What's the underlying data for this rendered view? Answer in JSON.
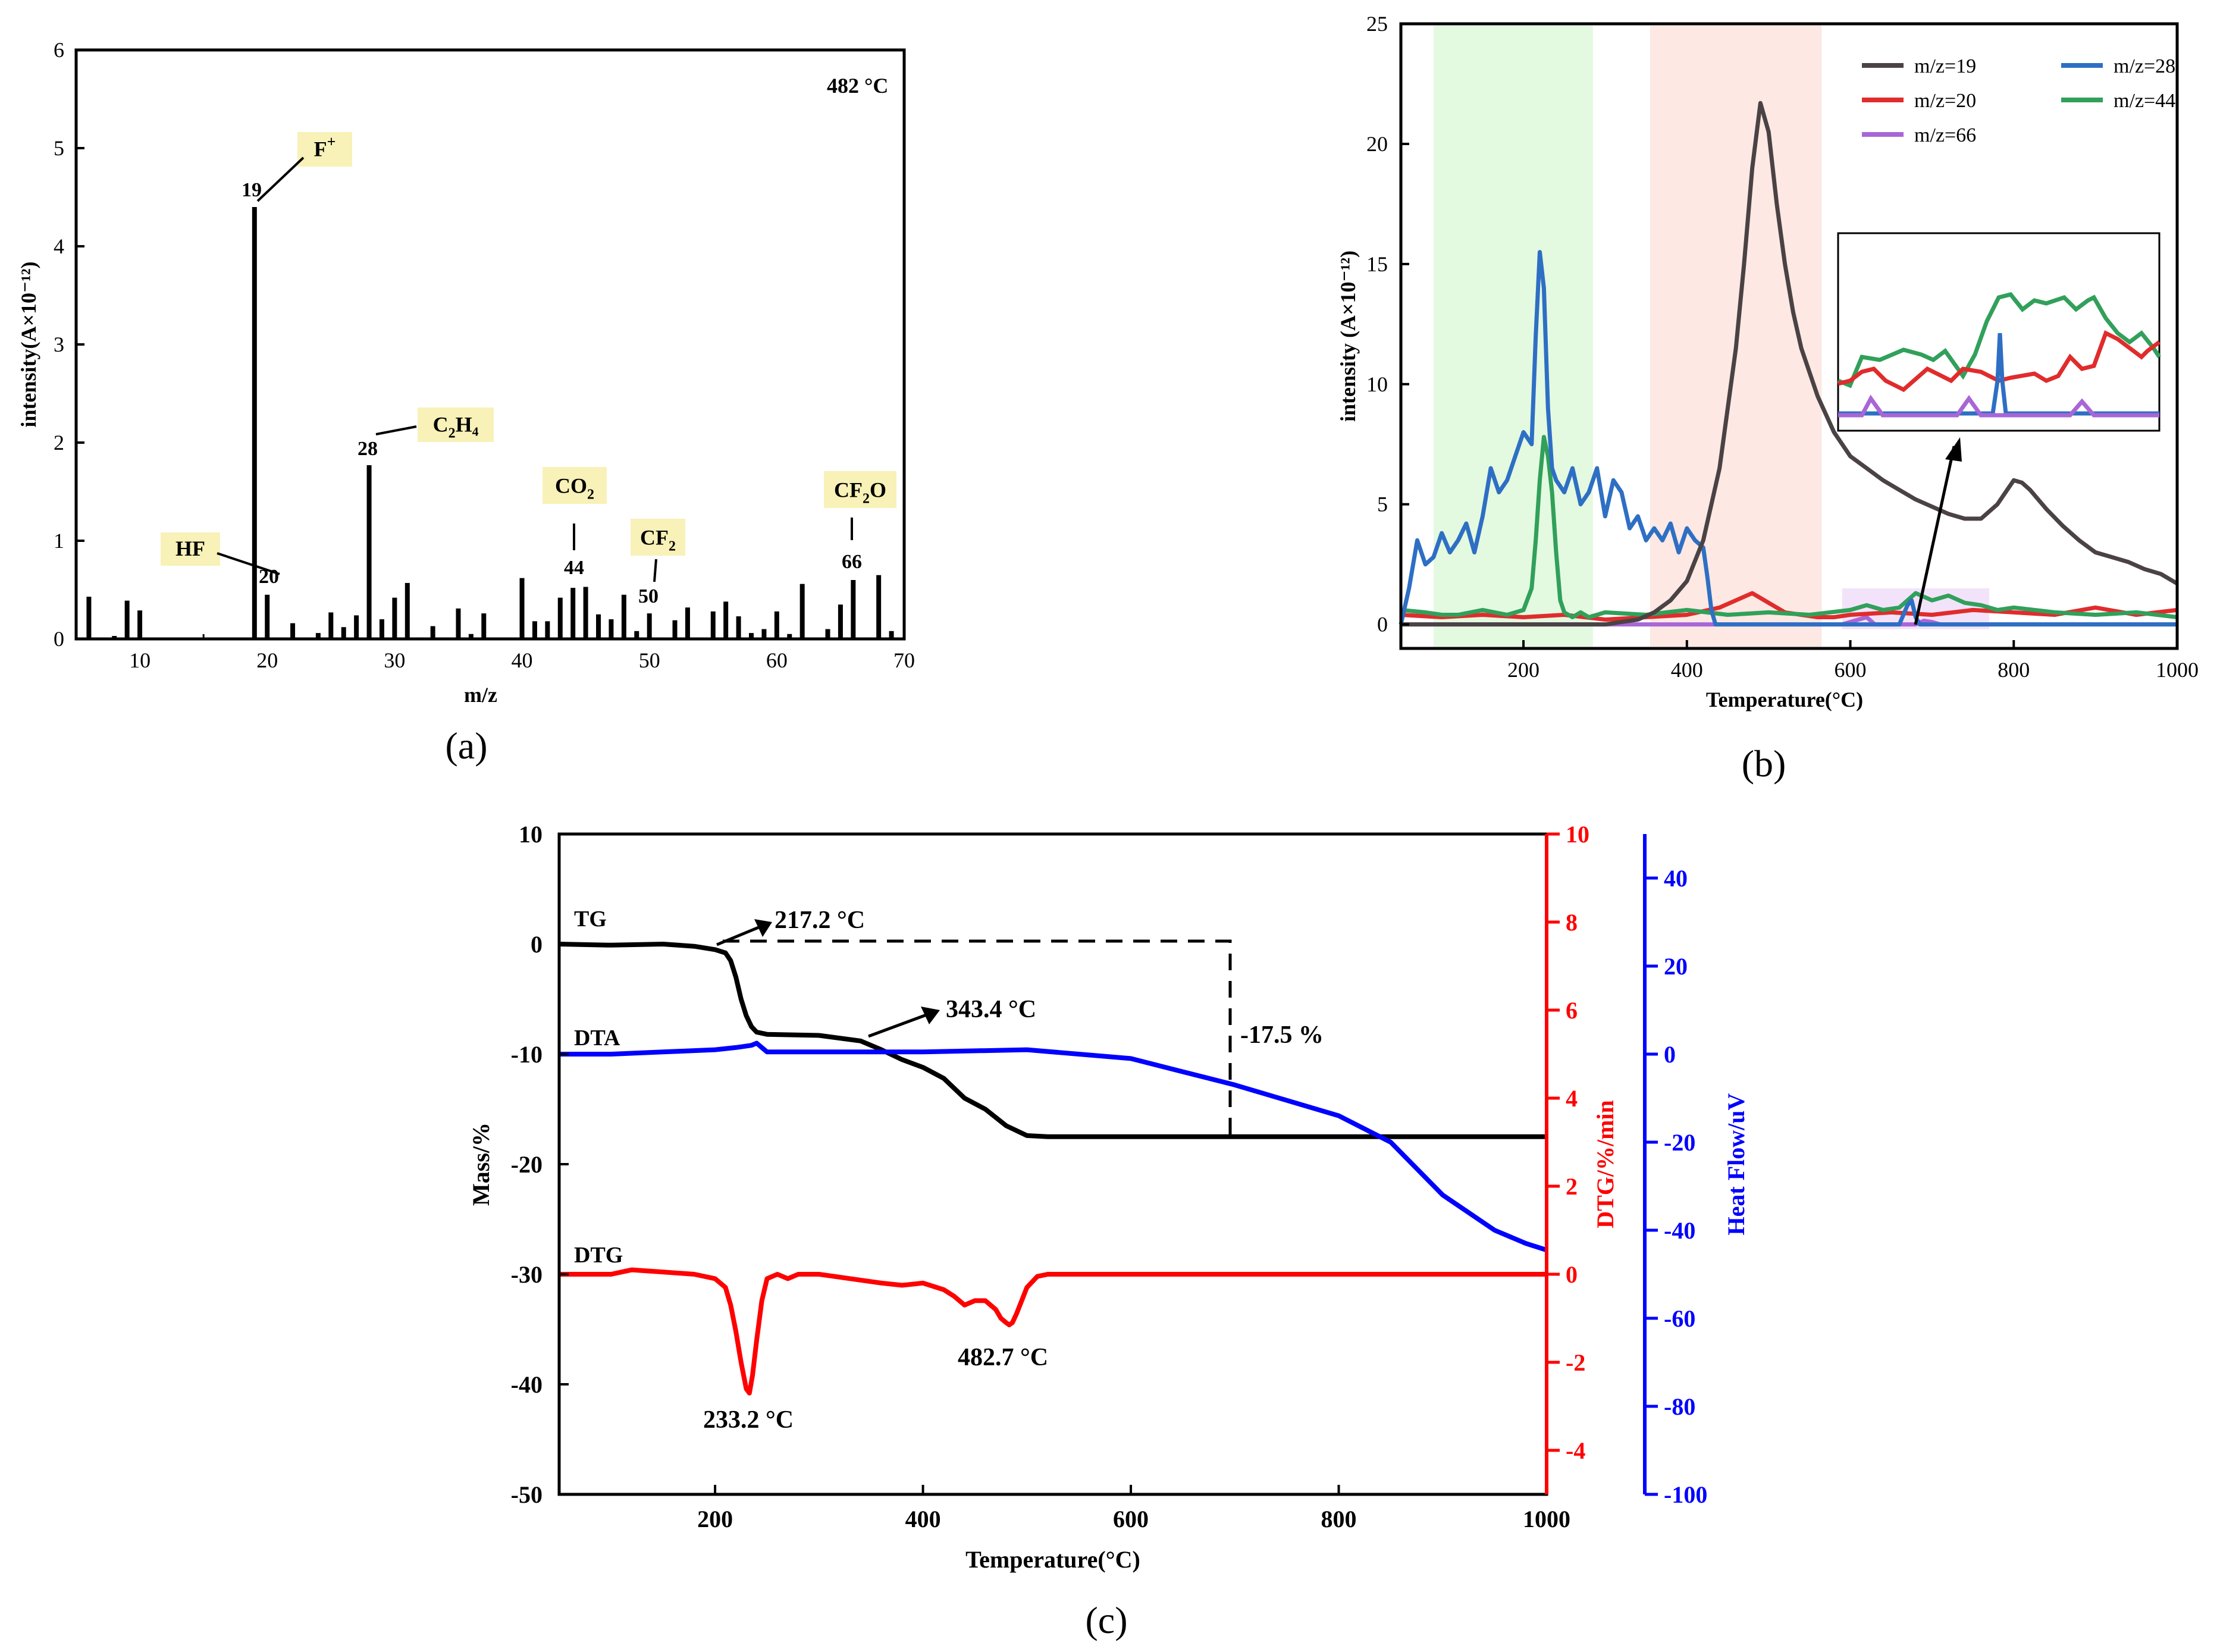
{
  "panels": {
    "a": {
      "caption": "(a)",
      "annotation": "482 °C",
      "chart_data": {
        "type": "bar",
        "xlabel": "m/z",
        "ylabel": "intensity(A×10⁻¹²)",
        "xlim": [
          5,
          70
        ],
        "ylim": [
          0,
          6
        ],
        "xticks": [
          10,
          20,
          30,
          40,
          50,
          60,
          70
        ],
        "yticks": [
          0,
          1,
          2,
          3,
          4,
          5,
          6
        ],
        "x": [
          6,
          8,
          9,
          10,
          19,
          20,
          22,
          24,
          25,
          26,
          27,
          28,
          29,
          30,
          31,
          33,
          35,
          36,
          37,
          40,
          41,
          42,
          43,
          44,
          45,
          46,
          47,
          48,
          49,
          50,
          52,
          53,
          55,
          56,
          57,
          58,
          59,
          60,
          61,
          62,
          64,
          65,
          66,
          68,
          69
        ],
        "values": [
          0.43,
          0.03,
          0.39,
          0.29,
          4.4,
          0.45,
          0.16,
          0.06,
          0.27,
          0.12,
          0.24,
          1.77,
          0.2,
          0.42,
          0.57,
          0.13,
          0.31,
          0.05,
          0.26,
          0.62,
          0.18,
          0.18,
          0.42,
          0.52,
          0.53,
          0.25,
          0.2,
          0.45,
          0.08,
          0.26,
          0.19,
          0.32,
          0.28,
          0.38,
          0.23,
          0.06,
          0.1,
          0.28,
          0.05,
          0.56,
          0.1,
          0.35,
          0.6,
          0.65,
          0.08
        ],
        "peak_labels": [
          {
            "mz": 19,
            "number": "19",
            "species_base": "F",
            "species_sup": "+",
            "species_sub": "",
            "species_tail": ""
          },
          {
            "mz": 20,
            "number": "20",
            "species_base": "HF",
            "species_sup": "",
            "species_sub": "",
            "species_tail": ""
          },
          {
            "mz": 28,
            "number": "28",
            "species_base": "C",
            "species_sub": "2",
            "species_tail": "H₄",
            "species_sup": ""
          },
          {
            "mz": 44,
            "number": "44",
            "species_base": "CO",
            "species_sub": "2",
            "species_tail": "",
            "species_sup": ""
          },
          {
            "mz": 50,
            "number": "50",
            "species_base": "CF",
            "species_sub": "2",
            "species_tail": "",
            "species_sup": ""
          },
          {
            "mz": 66,
            "number": "66",
            "species_base": "CF",
            "species_sub": "2",
            "species_tail": "O",
            "species_sup": ""
          }
        ]
      }
    },
    "b": {
      "caption": "(b)",
      "chart_data": {
        "type": "line",
        "xlabel": "Temperature(°C)",
        "ylabel": "intensity (A×10⁻¹²)",
        "xlim": [
          50,
          1000
        ],
        "ylim": [
          -1,
          25
        ],
        "xticks": [
          200,
          400,
          600,
          800,
          1000
        ],
        "yticks": [
          0,
          5,
          10,
          15,
          20,
          25
        ],
        "highlight_bands": [
          {
            "from": 90,
            "to": 285,
            "color": "#e3f9e0"
          },
          {
            "from": 355,
            "to": 565,
            "color": "#fde8e3"
          },
          {
            "from": 590,
            "to": 770,
            "color": "#f2e3fa"
          }
        ],
        "legend_position": "top-right",
        "series": [
          {
            "name": "m/z=19",
            "color": "#4a4245",
            "x": [
              50,
              100,
              150,
              200,
              250,
              300,
              340,
              360,
              380,
              400,
              420,
              440,
              460,
              470,
              480,
              490,
              500,
              510,
              520,
              530,
              540,
              560,
              580,
              600,
              620,
              640,
              660,
              680,
              700,
              720,
              740,
              760,
              780,
              790,
              800,
              810,
              820,
              840,
              860,
              880,
              900,
              920,
              940,
              960,
              980,
              1000
            ],
            "y": [
              0,
              0,
              0,
              0,
              0,
              0,
              0.2,
              0.5,
              1.0,
              1.8,
              3.5,
              6.5,
              11.5,
              15,
              19,
              21.7,
              20.5,
              17.5,
              15,
              13,
              11.5,
              9.5,
              8,
              7,
              6.5,
              6,
              5.6,
              5.2,
              4.9,
              4.6,
              4.4,
              4.4,
              5.0,
              5.5,
              6.0,
              5.9,
              5.6,
              4.8,
              4.1,
              3.5,
              3.0,
              2.8,
              2.6,
              2.3,
              2.1,
              1.7
            ]
          },
          {
            "name": "m/z=28",
            "color": "#2e6fc4",
            "x": [
              50,
              60,
              70,
              80,
              90,
              100,
              110,
              120,
              130,
              140,
              150,
              160,
              170,
              180,
              190,
              200,
              210,
              215,
              220,
              225,
              230,
              235,
              240,
              250,
              260,
              270,
              280,
              290,
              300,
              310,
              320,
              330,
              340,
              350,
              360,
              370,
              380,
              390,
              400,
              410,
              420,
              425,
              430,
              435,
              440,
              460,
              500,
              600,
              660,
              670,
              675,
              680,
              685,
              690,
              700,
              1000
            ],
            "y": [
              0,
              1.5,
              3.5,
              2.5,
              2.8,
              3.8,
              3.0,
              3.5,
              4.2,
              3.0,
              4.5,
              6.5,
              5.5,
              6.0,
              7.0,
              8.0,
              7.5,
              12,
              15.5,
              14,
              9,
              6.5,
              6,
              5.5,
              6.5,
              5.0,
              5.5,
              6.5,
              4.5,
              6.0,
              5.5,
              4.0,
              4.5,
              3.5,
              4.0,
              3.5,
              4.2,
              3.0,
              4.0,
              3.5,
              3.2,
              2.0,
              0.6,
              0,
              0,
              0,
              0,
              0,
              0,
              0.8,
              1.0,
              0.3,
              0,
              0,
              0,
              0
            ]
          },
          {
            "name": "m/z=20",
            "color": "#e02c2c",
            "x": [
              50,
              100,
              150,
              200,
              250,
              300,
              350,
              400,
              440,
              460,
              480,
              490,
              500,
              520,
              540,
              560,
              580,
              600,
              650,
              700,
              750,
              800,
              850,
              900,
              950,
              1000
            ],
            "y": [
              0.4,
              0.3,
              0.4,
              0.3,
              0.4,
              0.2,
              0.3,
              0.4,
              0.7,
              1.0,
              1.3,
              1.1,
              0.9,
              0.5,
              0.4,
              0.3,
              0.3,
              0.4,
              0.5,
              0.4,
              0.6,
              0.5,
              0.4,
              0.7,
              0.4,
              0.6
            ]
          },
          {
            "name": "m/z=44",
            "color": "#31a05a",
            "x": [
              50,
              80,
              100,
              120,
              150,
              180,
              200,
              210,
              215,
              220,
              225,
              230,
              235,
              240,
              245,
              250,
              255,
              260,
              270,
              280,
              300,
              350,
              400,
              450,
              500,
              550,
              600,
              620,
              640,
              660,
              680,
              700,
              720,
              740,
              760,
              780,
              800,
              850,
              900,
              950,
              1000
            ],
            "y": [
              0.6,
              0.5,
              0.4,
              0.4,
              0.6,
              0.4,
              0.6,
              1.5,
              3.5,
              6.0,
              7.8,
              7.0,
              5.5,
              3.0,
              1.0,
              0.5,
              0.4,
              0.3,
              0.5,
              0.3,
              0.5,
              0.4,
              0.6,
              0.4,
              0.5,
              0.4,
              0.6,
              0.8,
              0.6,
              0.7,
              1.3,
              1.0,
              1.2,
              0.9,
              0.8,
              0.6,
              0.7,
              0.5,
              0.4,
              0.5,
              0.3
            ]
          },
          {
            "name": "m/z=66",
            "color": "#a866d6",
            "x": [
              50,
              300,
              400,
              500,
              590,
              610,
              620,
              630,
              640,
              680,
              690,
              700,
              710,
              720,
              1000
            ],
            "y": [
              0,
              0,
              0,
              0,
              0,
              0.2,
              0.3,
              0,
              0,
              0,
              0.15,
              0.1,
              0,
              0,
              0
            ]
          }
        ],
        "inset_arrow_target": "inset zoom"
      }
    },
    "c": {
      "caption": "(c)",
      "chart_data": {
        "type": "line",
        "xlabel": "Temperature(°C)",
        "xlim": [
          50,
          1000
        ],
        "xticks": [
          200,
          400,
          600,
          800,
          1000
        ],
        "y_axes": [
          {
            "label": "Mass/%",
            "lim": [
              -50,
              10
            ],
            "ticks": [
              -50,
              -40,
              -30,
              -20,
              -10,
              0,
              10
            ],
            "color": "#000000"
          },
          {
            "label": "DTG/%/min",
            "lim": [
              -5,
              10
            ],
            "ticks": [
              -4,
              -2,
              0,
              2,
              4,
              6,
              8,
              10
            ],
            "color": "#ff0000"
          },
          {
            "label": "Heat Flow/uV",
            "lim": [
              -100,
              50
            ],
            "ticks": [
              -100,
              -80,
              -60,
              -40,
              -20,
              0,
              20,
              40
            ],
            "color": "#0000ff"
          }
        ],
        "series": [
          {
            "name": "TG",
            "axis": 0,
            "color": "#000000",
            "x": [
              50,
              100,
              150,
              180,
              200,
              210,
              215,
              220,
              225,
              230,
              235,
              240,
              245,
              250,
              300,
              340,
              360,
              380,
              400,
              420,
              440,
              460,
              480,
              500,
              520,
              600,
              700,
              800,
              900,
              1000
            ],
            "y": [
              0,
              -0.1,
              0,
              -0.2,
              -0.5,
              -0.8,
              -1.5,
              -3,
              -5,
              -6.5,
              -7.5,
              -8,
              -8.1,
              -8.2,
              -8.3,
              -8.8,
              -9.6,
              -10.5,
              -11.2,
              -12.2,
              -14,
              -15,
              -16.5,
              -17.4,
              -17.5,
              -17.5,
              -17.5,
              -17.5,
              -17.5,
              -17.5
            ]
          },
          {
            "name": "DTA",
            "axis": 2,
            "color": "#0000ff",
            "x": [
              50,
              100,
              150,
              200,
              220,
              235,
              240,
              245,
              250,
              300,
              400,
              500,
              550,
              600,
              650,
              700,
              750,
              800,
              850,
              900,
              950,
              980,
              1000
            ],
            "y": [
              0,
              0,
              0.5,
              1,
              1.5,
              2,
              2.5,
              1.5,
              0.5,
              0.5,
              0.5,
              1,
              0,
              -1,
              -4,
              -7,
              -10.5,
              -14,
              -20,
              -32,
              -40,
              -43,
              -44.5
            ]
          },
          {
            "name": "DTG",
            "axis": 1,
            "color": "#ff0000",
            "x": [
              50,
              100,
              120,
              150,
              180,
              200,
              210,
              215,
              220,
              225,
              230,
              233,
              236,
              240,
              245,
              250,
              260,
              270,
              280,
              300,
              330,
              360,
              380,
              400,
              420,
              430,
              440,
              450,
              460,
              470,
              475,
              480,
              483,
              486,
              490,
              495,
              500,
              510,
              520,
              540,
              600,
              800,
              1000
            ],
            "y": [
              0,
              0,
              0.1,
              0.05,
              0,
              -0.1,
              -0.3,
              -0.7,
              -1.3,
              -2.0,
              -2.6,
              -2.7,
              -2.3,
              -1.5,
              -0.6,
              -0.1,
              0,
              -0.1,
              0,
              0,
              -0.1,
              -0.2,
              -0.25,
              -0.2,
              -0.35,
              -0.5,
              -0.7,
              -0.6,
              -0.6,
              -0.8,
              -1.0,
              -1.1,
              -1.15,
              -1.1,
              -0.9,
              -0.6,
              -0.3,
              -0.05,
              0,
              0,
              0,
              0,
              0
            ]
          }
        ],
        "annotations": [
          "217.2 °C",
          "343.4 °C",
          "-17.5 %",
          "233.2 °C",
          "482.7 °C"
        ]
      }
    }
  }
}
